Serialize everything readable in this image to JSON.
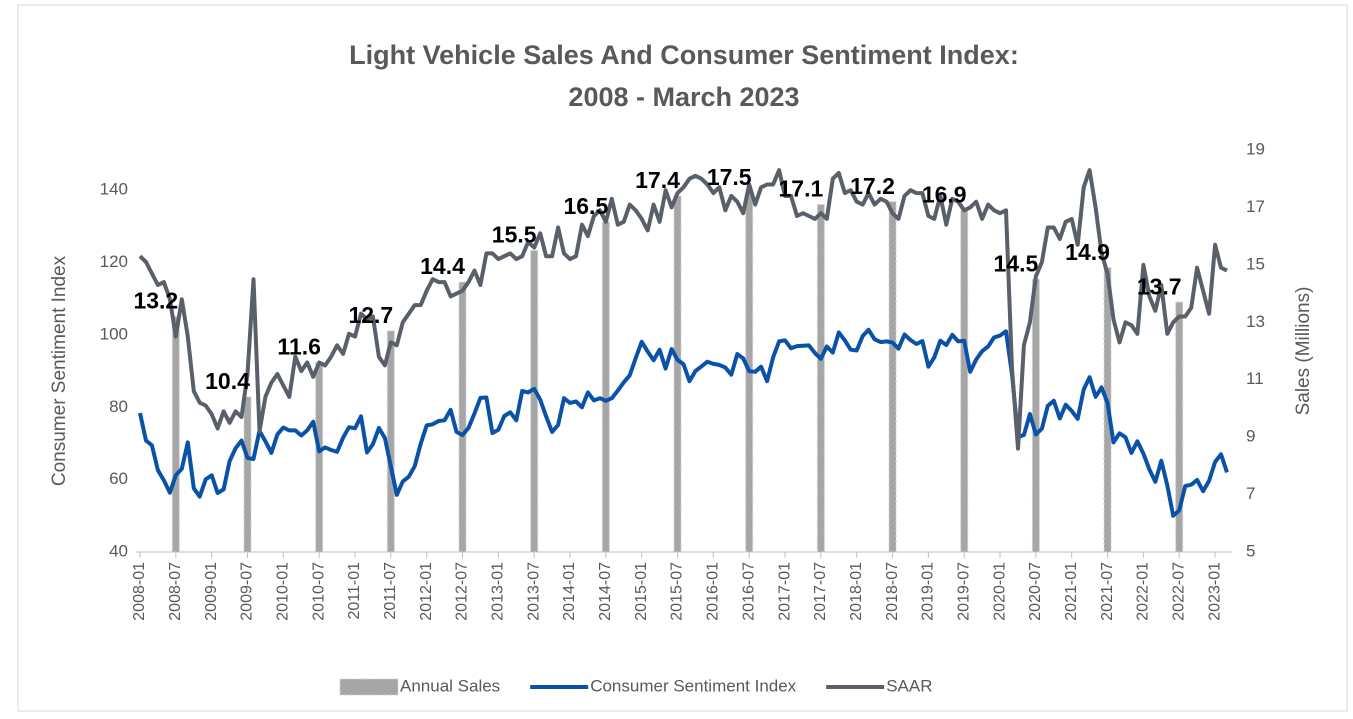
{
  "chart_data": {
    "type": "combo",
    "title": [
      "Light Vehicle Sales And Consumer Sentiment Index:",
      "2008 - March 2023"
    ],
    "ylabel": "Consumer Sentiment Index",
    "y2label": "Sales (Millions)",
    "categories": [
      "2008-01",
      null,
      null,
      null,
      null,
      null,
      "2008-07",
      null,
      null,
      null,
      null,
      null,
      "2009-01",
      null,
      null,
      null,
      null,
      null,
      "2009-07",
      null,
      null,
      null,
      null,
      null,
      "2010-01",
      null,
      null,
      null,
      null,
      null,
      "2010-07",
      null,
      null,
      null,
      null,
      null,
      "2011-01",
      null,
      null,
      null,
      null,
      null,
      "2011-07",
      null,
      null,
      null,
      null,
      null,
      "2012-01",
      null,
      null,
      null,
      null,
      null,
      "2012-07",
      null,
      null,
      null,
      null,
      null,
      "2013-01",
      null,
      null,
      null,
      null,
      null,
      "2013-07",
      null,
      null,
      null,
      null,
      null,
      "2014-01",
      null,
      null,
      null,
      null,
      null,
      "2014-07",
      null,
      null,
      null,
      null,
      null,
      "2015-01",
      null,
      null,
      null,
      null,
      null,
      "2015-07",
      null,
      null,
      null,
      null,
      null,
      "2016-01",
      null,
      null,
      null,
      null,
      null,
      "2016-07",
      null,
      null,
      null,
      null,
      null,
      "2017-01",
      null,
      null,
      null,
      null,
      null,
      "2017-07",
      null,
      null,
      null,
      null,
      null,
      "2018-01",
      null,
      null,
      null,
      null,
      null,
      "2018-07",
      null,
      null,
      null,
      null,
      null,
      "2019-01",
      null,
      null,
      null,
      null,
      null,
      "2019-07",
      null,
      null,
      null,
      null,
      null,
      "2020-01",
      null,
      null,
      null,
      null,
      null,
      "2020-07",
      null,
      null,
      null,
      null,
      null,
      "2021-01",
      null,
      null,
      null,
      null,
      null,
      "2021-07",
      null,
      null,
      null,
      null,
      null,
      "2022-01",
      null,
      null,
      null,
      null,
      null,
      "2022-07",
      null,
      null,
      null,
      null,
      null,
      "2023-01",
      null,
      null
    ],
    "series": [
      {
        "name": "Annual Sales",
        "type": "bar",
        "axis": "y2",
        "color": "#a6a6a6",
        "data_labels": true,
        "values": [
          null,
          null,
          null,
          null,
          null,
          null,
          13.2,
          null,
          null,
          null,
          null,
          null,
          null,
          null,
          null,
          null,
          null,
          null,
          10.4,
          null,
          null,
          null,
          null,
          null,
          null,
          null,
          null,
          null,
          null,
          null,
          11.6,
          null,
          null,
          null,
          null,
          null,
          null,
          null,
          null,
          null,
          null,
          null,
          12.7,
          null,
          null,
          null,
          null,
          null,
          null,
          null,
          null,
          null,
          null,
          null,
          14.4,
          null,
          null,
          null,
          null,
          null,
          null,
          null,
          null,
          null,
          null,
          null,
          15.5,
          null,
          null,
          null,
          null,
          null,
          null,
          null,
          null,
          null,
          null,
          null,
          16.5,
          null,
          null,
          null,
          null,
          null,
          null,
          null,
          null,
          null,
          null,
          null,
          17.4,
          null,
          null,
          null,
          null,
          null,
          null,
          null,
          null,
          null,
          null,
          null,
          17.5,
          null,
          null,
          null,
          null,
          null,
          null,
          null,
          null,
          null,
          null,
          null,
          17.1,
          null,
          null,
          null,
          null,
          null,
          null,
          null,
          null,
          null,
          null,
          null,
          17.2,
          null,
          null,
          null,
          null,
          null,
          null,
          null,
          null,
          null,
          null,
          null,
          16.9,
          null,
          null,
          null,
          null,
          null,
          null,
          null,
          null,
          null,
          null,
          null,
          14.5,
          null,
          null,
          null,
          null,
          null,
          null,
          null,
          null,
          null,
          null,
          null,
          14.9,
          null,
          null,
          null,
          null,
          null,
          null,
          null,
          null,
          null,
          null,
          null,
          13.7,
          null,
          null,
          null,
          null,
          null,
          null,
          null,
          null
        ]
      },
      {
        "name": "Consumer Sentiment Index",
        "type": "line",
        "axis": "y",
        "color": "#0a52a8",
        "values": [
          78.4,
          70.8,
          69.5,
          62.6,
          59.8,
          56.4,
          61.2,
          63.0,
          70.3,
          57.6,
          55.3,
          60.1,
          61.2,
          56.3,
          57.3,
          65.1,
          68.7,
          70.8,
          66.0,
          65.7,
          73.5,
          70.6,
          67.4,
          72.5,
          74.4,
          73.6,
          73.6,
          72.2,
          73.6,
          76.0,
          67.8,
          68.9,
          68.2,
          67.7,
          71.6,
          74.5,
          74.2,
          77.5,
          67.5,
          69.8,
          74.3,
          71.5,
          63.7,
          55.8,
          59.5,
          60.8,
          63.7,
          69.9,
          75.0,
          75.3,
          76.2,
          76.4,
          79.3,
          73.2,
          72.3,
          74.3,
          78.3,
          82.6,
          82.7,
          72.9,
          73.8,
          77.6,
          78.6,
          76.4,
          84.5,
          84.1,
          85.1,
          82.1,
          77.5,
          73.2,
          75.1,
          82.5,
          81.2,
          81.6,
          80.0,
          84.1,
          81.9,
          82.5,
          81.8,
          82.5,
          84.6,
          86.9,
          88.8,
          93.6,
          98.1,
          95.4,
          93.0,
          95.9,
          90.7,
          96.1,
          93.1,
          91.9,
          87.2,
          90.0,
          91.3,
          92.6,
          92.0,
          91.7,
          91.0,
          89.0,
          94.7,
          93.5,
          90.0,
          89.8,
          91.2,
          87.2,
          93.8,
          98.2,
          98.5,
          96.3,
          96.9,
          97.0,
          97.1,
          95.0,
          93.4,
          96.8,
          95.1,
          100.7,
          98.5,
          95.9,
          95.7,
          99.7,
          101.4,
          98.8,
          98.0,
          98.2,
          97.9,
          96.2,
          100.1,
          98.6,
          97.5,
          98.3,
          91.2,
          93.8,
          98.4,
          97.2,
          100.0,
          98.2,
          98.4,
          89.8,
          93.2,
          95.5,
          96.8,
          99.3,
          99.8,
          101.0,
          89.1,
          71.8,
          72.3,
          78.1,
          72.5,
          74.1,
          80.4,
          81.8,
          76.9,
          80.7,
          79.0,
          76.8,
          84.9,
          88.3,
          82.9,
          85.5,
          81.2,
          70.3,
          72.8,
          71.7,
          67.4,
          70.6,
          67.2,
          62.8,
          59.4,
          65.2,
          58.4,
          50.0,
          51.5,
          58.2,
          58.6,
          59.9,
          56.8,
          59.7,
          64.9,
          67.0,
          62.0
        ]
      },
      {
        "name": "SAAR",
        "type": "line",
        "axis": "y2",
        "color": "#596069",
        "values": [
          15.3,
          15.1,
          14.7,
          14.3,
          14.4,
          13.8,
          12.5,
          13.8,
          12.5,
          10.6,
          10.2,
          10.1,
          9.8,
          9.3,
          9.9,
          9.5,
          9.9,
          9.7,
          11.2,
          14.5,
          9.2,
          10.4,
          10.9,
          11.2,
          10.8,
          10.4,
          11.8,
          11.3,
          11.6,
          11.1,
          11.6,
          11.5,
          11.8,
          12.2,
          11.9,
          12.6,
          12.5,
          13.3,
          13.1,
          13.2,
          11.8,
          11.5,
          12.3,
          12.2,
          13.0,
          13.3,
          13.6,
          13.6,
          14.1,
          14.5,
          14.4,
          14.4,
          13.9,
          14.0,
          14.1,
          14.4,
          14.8,
          14.3,
          15.4,
          15.4,
          15.2,
          15.3,
          15.4,
          15.2,
          15.3,
          15.8,
          15.6,
          16.1,
          15.3,
          15.3,
          16.3,
          15.4,
          15.2,
          15.3,
          16.4,
          16.0,
          16.7,
          16.9,
          16.5,
          17.3,
          16.4,
          16.5,
          17.1,
          16.9,
          16.6,
          16.2,
          17.1,
          16.5,
          17.6,
          17.0,
          17.5,
          17.7,
          18.0,
          18.1,
          18.0,
          17.8,
          17.5,
          17.7,
          16.9,
          17.4,
          17.2,
          16.8,
          17.8,
          17.1,
          17.7,
          17.8,
          17.8,
          18.3,
          17.4,
          17.4,
          16.7,
          16.8,
          16.7,
          16.6,
          16.8,
          16.6,
          18.0,
          18.2,
          17.5,
          17.6,
          17.2,
          17.1,
          17.5,
          17.1,
          17.3,
          17.2,
          16.8,
          16.6,
          17.4,
          17.6,
          17.5,
          17.5,
          16.7,
          16.6,
          17.4,
          16.4,
          17.3,
          17.2,
          16.9,
          17.0,
          17.2,
          16.6,
          17.1,
          16.9,
          16.8,
          16.9,
          11.4,
          8.6,
          12.2,
          13.0,
          14.6,
          15.1,
          16.3,
          16.3,
          15.9,
          16.5,
          16.6,
          15.7,
          17.7,
          18.3,
          17.0,
          15.4,
          14.7,
          13.1,
          12.3,
          13.0,
          12.9,
          12.6,
          15.0,
          13.9,
          13.4,
          14.3,
          12.6,
          13.0,
          13.2,
          13.2,
          13.5,
          14.9,
          14.1,
          13.3,
          15.7,
          14.9,
          14.8
        ]
      }
    ],
    "ylim": [
      40,
      150
    ],
    "yticks": [
      40,
      60,
      80,
      100,
      120,
      140
    ],
    "y2lim": [
      5,
      19
    ],
    "y2ticks": [
      5,
      7,
      9,
      11,
      13,
      15,
      17,
      19
    ],
    "legend": "bottom"
  }
}
